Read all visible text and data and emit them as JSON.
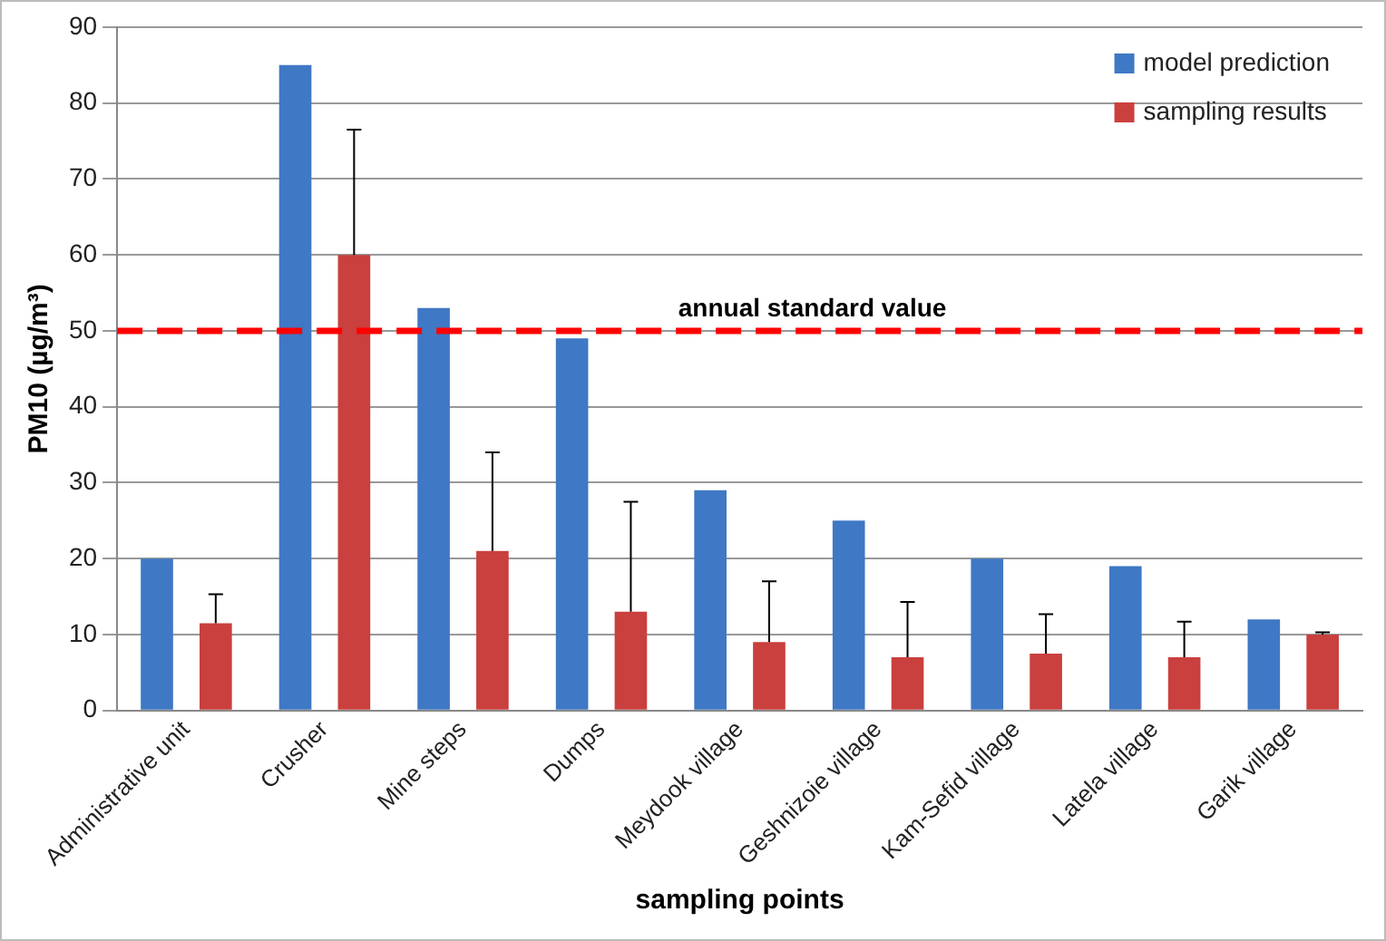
{
  "chart_data": {
    "type": "bar",
    "xlabel": "sampling points",
    "ylabel": "PM10 (µg/m³)",
    "categories": [
      "Administrative unit",
      "Crusher",
      "Mine steps",
      "Dumps",
      "Meydook village",
      "Geshnizoie village",
      "Kam-Sefid village",
      "Latela village",
      "Garik village"
    ],
    "series": [
      {
        "name": "model prediction",
        "color": "#3f78c4",
        "values": [
          20,
          85,
          53,
          49,
          29,
          25,
          20,
          19,
          12
        ]
      },
      {
        "name": "sampling results",
        "color": "#c9403e",
        "values": [
          11.5,
          60,
          21,
          13,
          9,
          7,
          7.5,
          7,
          10
        ],
        "errors": [
          [
            11.5,
            15.3
          ],
          [
            60,
            76.5
          ],
          [
            21,
            34
          ],
          [
            13,
            27.5
          ],
          [
            9,
            17
          ],
          [
            7,
            14.3
          ],
          [
            7.5,
            12.7
          ],
          [
            7,
            11.7
          ],
          [
            10,
            10.3
          ]
        ]
      }
    ],
    "ylim": [
      0,
      90
    ],
    "yticks": [
      0,
      10,
      20,
      30,
      40,
      50,
      60,
      70,
      80,
      90
    ],
    "grid": "y",
    "legend": "top right",
    "ref_lines": [
      {
        "axis": "y",
        "value": 50,
        "label": "annual standard value",
        "color": "#ff0000",
        "line_style": "dashed"
      }
    ]
  }
}
